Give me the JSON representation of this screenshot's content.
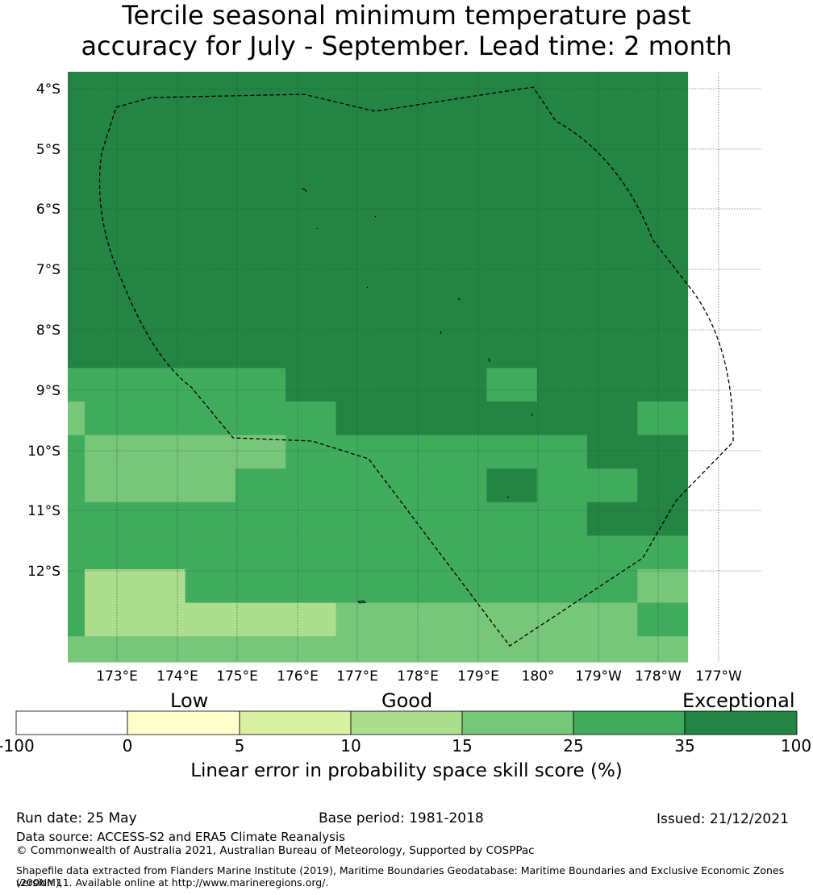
{
  "title": {
    "line1": "Tercile seasonal minimum temperature past",
    "line2": "accuracy for July - September. Lead time: 2 month"
  },
  "map": {
    "lat_labels": [
      "4°S",
      "5°S",
      "6°S",
      "7°S",
      "8°S",
      "9°S",
      "10°S",
      "11°S",
      "12°S"
    ],
    "lon_labels": [
      "173°E",
      "174°E",
      "175°E",
      "176°E",
      "177°E",
      "178°E",
      "179°E",
      "180°",
      "179°W",
      "178°W",
      "177°W"
    ],
    "category_colors": [
      "#ffffff",
      "#ffffcc",
      "#d9f0a3",
      "#addd8e",
      "#78c679",
      "#41ab5d",
      "#238443"
    ],
    "grid_rows": [
      "6666666666666",
      "6666666666666",
      "6666666666666",
      "6666666666666",
      "6666666666666",
      "6666666666666",
      "6666666666666",
      "6666666666666",
      "6666666666666",
      "5555566665666",
      "4555556666665",
      "5444455555566",
      "5444555556556",
      "5555555555566",
      "5555555555555",
      "5335555555554",
      "5333334444445",
      "4444444444444",
      "4555555555554",
      "4333333444444"
    ]
  },
  "colorbar": {
    "categories": [
      "Low",
      "Good",
      "Exceptional"
    ],
    "ticks": [
      "-100",
      "0",
      "5",
      "10",
      "15",
      "25",
      "35",
      "100"
    ],
    "label": "Linear error in probability space skill score (%)"
  },
  "footer": {
    "run_date": "Run date: 25 May",
    "base_period": "Base period: 1981-2018",
    "issued": "Issued: 21/12/2021",
    "data_source": "Data source: ACCESS-S2 and ERA5 Climate Reanalysis",
    "copyright": "© Commonwealth of Australia 2021, Australian Bureau of Meteorology, Supported by COSPPac",
    "shapefile_line1": "Shapefile data extracted from Flanders Marine Institute (2019), Maritime Boundaries Geodatabase: Maritime Boundaries and Exclusive Economic Zones (200NM),",
    "shapefile_line2": "version 11. Available online at http://www.marineregions.org/."
  }
}
